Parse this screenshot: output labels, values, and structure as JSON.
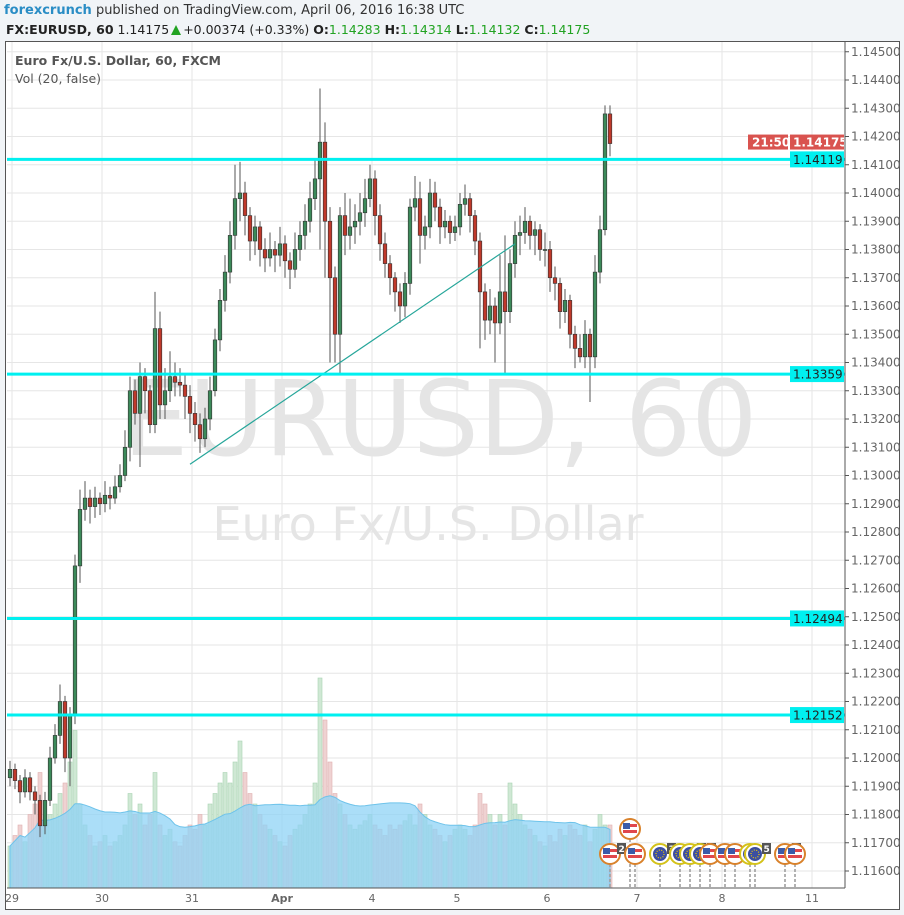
{
  "header": {
    "author": "forexcrunch",
    "published": "published on TradingView.com, April 06, 2016 16:38 UTC",
    "symbol": "FX:EURUSD, 60",
    "last": "1.14175",
    "change": "+0.00374 (+0.33%)",
    "o_label": "O:",
    "o": "1.14283",
    "h_label": "H:",
    "h": "1.14314",
    "l_label": "L:",
    "l": "1.14132",
    "c_label": "C:",
    "c": "1.14175"
  },
  "legend": {
    "title": "Euro Fx/U.S. Dollar, 60, FXCM",
    "indicator": "Vol (20, false)"
  },
  "watermark": {
    "line1": "EURUSD, 60",
    "line2": "Euro Fx/U.S. Dollar"
  },
  "colors": {
    "up": "#3c8a5a",
    "down": "#c0392b",
    "level": "#00f0f0",
    "trend": "#26a69a",
    "last_price": "#d9534f",
    "volume_ma": "#8fd3f5"
  },
  "chart_data": {
    "type": "candlestick",
    "ylim": [
      1.1155,
      1.1455
    ],
    "grid": true,
    "y_ticks": [
      "1.11600",
      "1.11700",
      "1.11800",
      "1.11900",
      "1.12000",
      "1.12100",
      "1.12200",
      "1.12300",
      "1.12400",
      "1.12500",
      "1.12600",
      "1.12700",
      "1.12800",
      "1.12900",
      "1.13000",
      "1.13100",
      "1.13200",
      "1.13300",
      "1.13400",
      "1.13500",
      "1.13600",
      "1.13700",
      "1.13800",
      "1.13900",
      "1.14000",
      "1.14100",
      "1.14200",
      "1.14300",
      "1.14400",
      "1.14500"
    ],
    "x_ticks": [
      {
        "label": "29",
        "candle": 0
      },
      {
        "label": "30",
        "candle": 18
      },
      {
        "label": "31",
        "candle": 36
      },
      {
        "label": "Apr",
        "candle": 54
      },
      {
        "label": "4",
        "candle": 72
      },
      {
        "label": "5",
        "candle": 89
      },
      {
        "label": "6",
        "candle": 107
      },
      {
        "label": "7",
        "candle": 125
      },
      {
        "label": "8",
        "candle": 142
      },
      {
        "label": "11",
        "candle": 160
      }
    ],
    "ohlc": [
      [
        1.1193,
        1.1199,
        1.119,
        1.1196
      ],
      [
        1.1196,
        1.1198,
        1.1189,
        1.1192
      ],
      [
        1.1192,
        1.1194,
        1.1184,
        1.1188
      ],
      [
        1.1188,
        1.1196,
        1.1186,
        1.1193
      ],
      [
        1.1193,
        1.1195,
        1.1185,
        1.1188
      ],
      [
        1.1188,
        1.119,
        1.118,
        1.1185
      ],
      [
        1.1185,
        1.1187,
        1.1172,
        1.1176
      ],
      [
        1.1176,
        1.1188,
        1.1173,
        1.1185
      ],
      [
        1.1185,
        1.1204,
        1.1183,
        1.12
      ],
      [
        1.12,
        1.1212,
        1.1198,
        1.1208
      ],
      [
        1.1208,
        1.1226,
        1.1205,
        1.122
      ],
      [
        1.122,
        1.1222,
        1.1195,
        1.12
      ],
      [
        1.12,
        1.1218,
        1.119,
        1.1215
      ],
      [
        1.1215,
        1.1272,
        1.1212,
        1.1268
      ],
      [
        1.1268,
        1.1295,
        1.1262,
        1.1288
      ],
      [
        1.1288,
        1.1298,
        1.1284,
        1.1292
      ],
      [
        1.1292,
        1.1295,
        1.1283,
        1.1289
      ],
      [
        1.1289,
        1.1296,
        1.1285,
        1.1292
      ],
      [
        1.1292,
        1.1294,
        1.1286,
        1.129
      ],
      [
        1.129,
        1.1298,
        1.1287,
        1.1293
      ],
      [
        1.1293,
        1.1296,
        1.1288,
        1.1292
      ],
      [
        1.1292,
        1.13,
        1.129,
        1.1296
      ],
      [
        1.1296,
        1.1304,
        1.1294,
        1.13
      ],
      [
        1.13,
        1.1316,
        1.1298,
        1.131
      ],
      [
        1.131,
        1.1335,
        1.1305,
        1.133
      ],
      [
        1.133,
        1.1334,
        1.1318,
        1.1322
      ],
      [
        1.1322,
        1.134,
        1.1303,
        1.1335
      ],
      [
        1.1335,
        1.1338,
        1.1322,
        1.133
      ],
      [
        1.133,
        1.1332,
        1.1315,
        1.1318
      ],
      [
        1.1318,
        1.1365,
        1.1315,
        1.1352
      ],
      [
        1.1352,
        1.1358,
        1.132,
        1.1325
      ],
      [
        1.1325,
        1.1338,
        1.132,
        1.133
      ],
      [
        1.133,
        1.1344,
        1.1326,
        1.1335
      ],
      [
        1.1335,
        1.134,
        1.1328,
        1.1333
      ],
      [
        1.1333,
        1.1338,
        1.1328,
        1.1332
      ],
      [
        1.1332,
        1.1336,
        1.132,
        1.1328
      ],
      [
        1.1328,
        1.1332,
        1.1315,
        1.1322
      ],
      [
        1.1322,
        1.1326,
        1.1312,
        1.1318
      ],
      [
        1.1318,
        1.1322,
        1.1308,
        1.1313
      ],
      [
        1.1313,
        1.1324,
        1.131,
        1.132
      ],
      [
        1.132,
        1.1335,
        1.1316,
        1.133
      ],
      [
        1.133,
        1.1352,
        1.1328,
        1.1348
      ],
      [
        1.1348,
        1.1366,
        1.1344,
        1.1362
      ],
      [
        1.1362,
        1.1378,
        1.1358,
        1.1372
      ],
      [
        1.1372,
        1.139,
        1.1368,
        1.1385
      ],
      [
        1.1385,
        1.141,
        1.138,
        1.1398
      ],
      [
        1.1398,
        1.1411,
        1.139,
        1.14
      ],
      [
        1.14,
        1.1404,
        1.1385,
        1.1392
      ],
      [
        1.1392,
        1.1395,
        1.1376,
        1.1383
      ],
      [
        1.1383,
        1.1392,
        1.1378,
        1.1388
      ],
      [
        1.1388,
        1.139,
        1.1374,
        1.138
      ],
      [
        1.138,
        1.1384,
        1.1372,
        1.1377
      ],
      [
        1.1377,
        1.1386,
        1.1374,
        1.138
      ],
      [
        1.138,
        1.1383,
        1.1372,
        1.1378
      ],
      [
        1.1378,
        1.1388,
        1.1374,
        1.1382
      ],
      [
        1.1382,
        1.1385,
        1.137,
        1.1376
      ],
      [
        1.1376,
        1.1379,
        1.1366,
        1.1373
      ],
      [
        1.1373,
        1.1386,
        1.137,
        1.138
      ],
      [
        1.138,
        1.139,
        1.1376,
        1.1385
      ],
      [
        1.1385,
        1.1396,
        1.138,
        1.139
      ],
      [
        1.139,
        1.1404,
        1.1386,
        1.1398
      ],
      [
        1.1398,
        1.1412,
        1.1394,
        1.1405
      ],
      [
        1.1405,
        1.1437,
        1.138,
        1.1418
      ],
      [
        1.1418,
        1.1425,
        1.137,
        1.139
      ],
      [
        1.139,
        1.1395,
        1.134,
        1.137
      ],
      [
        1.137,
        1.1374,
        1.134,
        1.135
      ],
      [
        1.135,
        1.1395,
        1.1336,
        1.1392
      ],
      [
        1.1392,
        1.14,
        1.1378,
        1.1385
      ],
      [
        1.1385,
        1.1398,
        1.138,
        1.1388
      ],
      [
        1.1388,
        1.1396,
        1.1382,
        1.139
      ],
      [
        1.139,
        1.14,
        1.1385,
        1.1393
      ],
      [
        1.1393,
        1.1405,
        1.1388,
        1.1398
      ],
      [
        1.1398,
        1.141,
        1.1395,
        1.1405
      ],
      [
        1.1405,
        1.1408,
        1.1385,
        1.1392
      ],
      [
        1.1392,
        1.1396,
        1.1376,
        1.1382
      ],
      [
        1.1382,
        1.1386,
        1.137,
        1.1375
      ],
      [
        1.1375,
        1.1378,
        1.1364,
        1.137
      ],
      [
        1.137,
        1.1372,
        1.1358,
        1.1365
      ],
      [
        1.1365,
        1.1368,
        1.1354,
        1.136
      ],
      [
        1.136,
        1.1372,
        1.1356,
        1.1368
      ],
      [
        1.1368,
        1.1398,
        1.1364,
        1.1395
      ],
      [
        1.1395,
        1.1406,
        1.139,
        1.1398
      ],
      [
        1.1398,
        1.1404,
        1.1375,
        1.1385
      ],
      [
        1.1385,
        1.1392,
        1.138,
        1.1388
      ],
      [
        1.1388,
        1.1405,
        1.1384,
        1.14
      ],
      [
        1.14,
        1.1404,
        1.139,
        1.1395
      ],
      [
        1.1395,
        1.1398,
        1.1382,
        1.1388
      ],
      [
        1.1388,
        1.1394,
        1.1384,
        1.139
      ],
      [
        1.139,
        1.1392,
        1.1382,
        1.1386
      ],
      [
        1.1386,
        1.1392,
        1.1383,
        1.1388
      ],
      [
        1.1388,
        1.14,
        1.1385,
        1.1396
      ],
      [
        1.1396,
        1.1403,
        1.1392,
        1.1398
      ],
      [
        1.1398,
        1.14,
        1.1386,
        1.1392
      ],
      [
        1.1392,
        1.1394,
        1.1378,
        1.1383
      ],
      [
        1.1383,
        1.1386,
        1.1345,
        1.1365
      ],
      [
        1.1365,
        1.1368,
        1.1348,
        1.1355
      ],
      [
        1.1355,
        1.1366,
        1.135,
        1.136
      ],
      [
        1.136,
        1.1363,
        1.134,
        1.1354
      ],
      [
        1.1354,
        1.1378,
        1.135,
        1.1365
      ],
      [
        1.1365,
        1.1385,
        1.1336,
        1.1358
      ],
      [
        1.1358,
        1.138,
        1.1354,
        1.1375
      ],
      [
        1.1375,
        1.139,
        1.137,
        1.1385
      ],
      [
        1.1385,
        1.1392,
        1.1378,
        1.1386
      ],
      [
        1.1386,
        1.1395,
        1.1382,
        1.139
      ],
      [
        1.139,
        1.1392,
        1.138,
        1.1385
      ],
      [
        1.1385,
        1.139,
        1.1378,
        1.1387
      ],
      [
        1.1387,
        1.1389,
        1.1376,
        1.138
      ],
      [
        1.138,
        1.1386,
        1.1374,
        1.138
      ],
      [
        1.138,
        1.1383,
        1.1365,
        1.137
      ],
      [
        1.137,
        1.1374,
        1.1362,
        1.1368
      ],
      [
        1.1368,
        1.137,
        1.1352,
        1.1358
      ],
      [
        1.1358,
        1.1366,
        1.1354,
        1.1362
      ],
      [
        1.1362,
        1.1364,
        1.1345,
        1.135
      ],
      [
        1.135,
        1.1353,
        1.1338,
        1.1345
      ],
      [
        1.1345,
        1.135,
        1.134,
        1.1342
      ],
      [
        1.1342,
        1.1355,
        1.1338,
        1.135
      ],
      [
        1.135,
        1.1352,
        1.1326,
        1.1342
      ],
      [
        1.1342,
        1.1378,
        1.1338,
        1.1372
      ],
      [
        1.1372,
        1.1392,
        1.1368,
        1.1387
      ],
      [
        1.1387,
        1.1431,
        1.1385,
        1.1428
      ],
      [
        1.1428,
        1.1431,
        1.1413,
        1.14175
      ]
    ],
    "volume": [
      20,
      25,
      30,
      22,
      35,
      40,
      55,
      30,
      35,
      40,
      45,
      50,
      60,
      75,
      40,
      30,
      25,
      20,
      22,
      25,
      20,
      22,
      25,
      30,
      45,
      35,
      40,
      30,
      35,
      55,
      30,
      25,
      28,
      22,
      20,
      25,
      30,
      28,
      35,
      30,
      40,
      45,
      50,
      55,
      50,
      60,
      70,
      55,
      45,
      40,
      35,
      30,
      28,
      25,
      22,
      20,
      25,
      28,
      30,
      35,
      40,
      50,
      100,
      80,
      60,
      45,
      40,
      35,
      30,
      28,
      30,
      32,
      35,
      30,
      28,
      25,
      30,
      28,
      30,
      32,
      35,
      30,
      40,
      35,
      30,
      28,
      25,
      22,
      25,
      28,
      30,
      28,
      25,
      30,
      45,
      40,
      35,
      30,
      35,
      30,
      50,
      40,
      35,
      30,
      28,
      25,
      22,
      20,
      25,
      22,
      28,
      25,
      30,
      28,
      25,
      30,
      22,
      28,
      35,
      30,
      30
    ],
    "horizontal_levels": [
      {
        "price": 1.14119,
        "label": "1.14119"
      },
      {
        "price": 1.13359,
        "label": "1.13359"
      },
      {
        "price": 1.12494,
        "label": "1.12494"
      },
      {
        "price": 1.12152,
        "label": "1.12152"
      }
    ],
    "trendline": {
      "start": {
        "candle": 36,
        "price": 1.1304
      },
      "end": {
        "candle": 101,
        "price": 1.1382
      }
    },
    "last_price_label": "1.14175",
    "countdown_label": "21:50",
    "events": [
      {
        "flag": "US",
        "candle": 120,
        "count": "2"
      },
      {
        "flag": "US",
        "candle": 124,
        "row": 2
      },
      {
        "flag": "US",
        "candle": 125
      },
      {
        "flag": "EU",
        "candle": 130,
        "count": "3"
      },
      {
        "flag": "EU",
        "candle": 134
      },
      {
        "flag": "EU",
        "candle": 136,
        "count": "3"
      },
      {
        "flag": "EU",
        "candle": 138,
        "count": "2"
      },
      {
        "flag": "US",
        "candle": 140
      },
      {
        "flag": "US",
        "candle": 143
      },
      {
        "flag": "US",
        "candle": 145
      },
      {
        "flag": "EU",
        "candle": 148
      },
      {
        "flag": "EU",
        "candle": 149,
        "count": "5"
      },
      {
        "flag": "US",
        "candle": 155,
        "count": "3"
      },
      {
        "flag": "US",
        "candle": 157
      }
    ]
  }
}
